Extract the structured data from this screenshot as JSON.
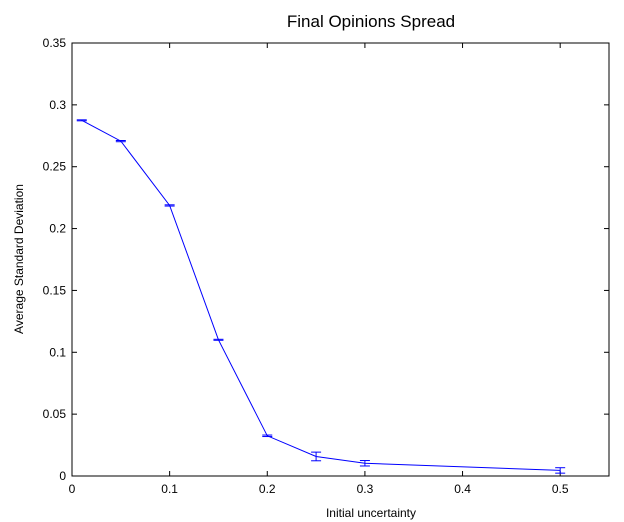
{
  "chart_data": {
    "type": "line",
    "title": "Final Opinions Spread",
    "xlabel": "Initial uncertainty",
    "ylabel": "Average Standard Deviation",
    "xlim": [
      0,
      0.55
    ],
    "ylim": [
      0,
      0.35
    ],
    "xticks": [
      0,
      0.1,
      0.2,
      0.3,
      0.4,
      0.5
    ],
    "xtick_labels": [
      "0",
      "0.1",
      "0.2",
      "0.3",
      "0.4",
      "0.5"
    ],
    "yticks": [
      0,
      0.05,
      0.1,
      0.15,
      0.2,
      0.25,
      0.3,
      0.35
    ],
    "ytick_labels": [
      "0",
      "0.05",
      "0.1",
      "0.15",
      "0.2",
      "0.25",
      "0.3",
      "0.35"
    ],
    "grid": false,
    "legend": "none",
    "series": [
      {
        "color": "#0000ff",
        "x": [
          0.01,
          0.05,
          0.1,
          0.15,
          0.2,
          0.25,
          0.3,
          0.5
        ],
        "y": [
          0.2875,
          0.2707,
          0.2187,
          0.1101,
          0.0325,
          0.0158,
          0.0103,
          0.0045
        ],
        "error": [
          0.0004,
          0.0005,
          0.0005,
          0.0004,
          0.0006,
          0.0035,
          0.0022,
          0.0022
        ]
      }
    ]
  }
}
